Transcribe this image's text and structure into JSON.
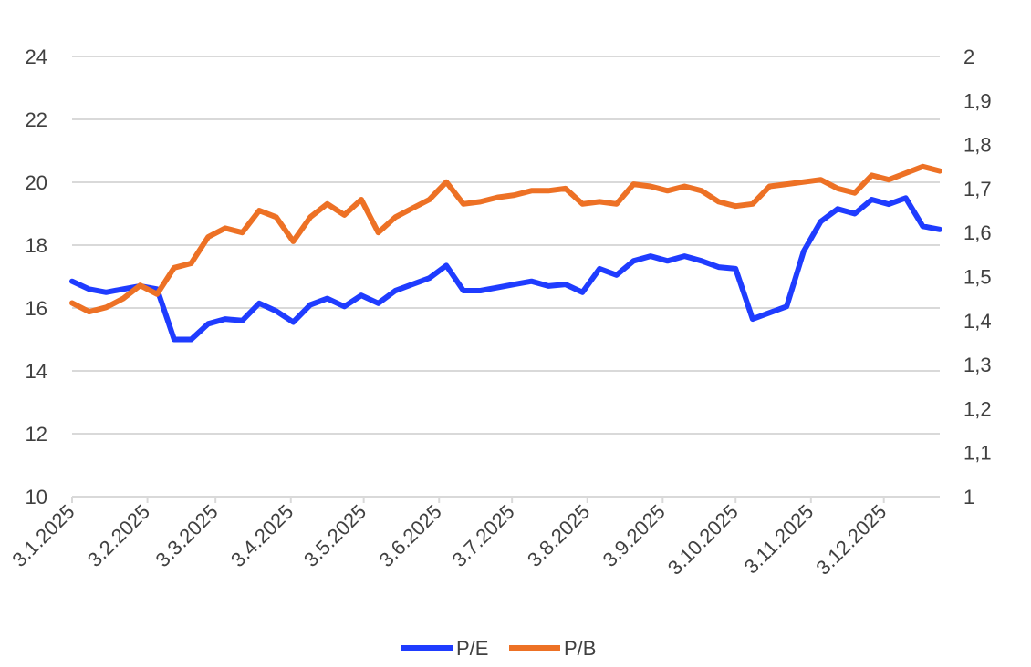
{
  "chart_data": {
    "type": "line",
    "x": [
      "2025-01-03",
      "2025-01-10",
      "2025-01-17",
      "2025-01-24",
      "2025-01-31",
      "2025-02-07",
      "2025-02-14",
      "2025-02-21",
      "2025-02-28",
      "2025-03-07",
      "2025-03-14",
      "2025-03-21",
      "2025-03-28",
      "2025-04-04",
      "2025-04-11",
      "2025-04-18",
      "2025-04-25",
      "2025-05-02",
      "2025-05-09",
      "2025-05-16",
      "2025-05-23",
      "2025-05-30",
      "2025-06-06",
      "2025-06-13",
      "2025-06-20",
      "2025-06-27",
      "2025-07-04",
      "2025-07-11",
      "2025-07-18",
      "2025-07-25",
      "2025-08-01",
      "2025-08-08",
      "2025-08-15",
      "2025-08-22",
      "2025-08-29",
      "2025-09-05",
      "2025-09-12",
      "2025-09-19",
      "2025-09-26",
      "2025-10-03",
      "2025-10-10",
      "2025-10-17",
      "2025-10-24",
      "2025-10-31",
      "2025-11-07",
      "2025-11-14",
      "2025-11-21",
      "2025-11-28",
      "2025-12-05",
      "2025-12-12",
      "2025-12-19",
      "2025-12-26"
    ],
    "x_tick_labels": [
      "3.1.2025",
      "3.2.2025",
      "3.3.2025",
      "3.4.2025",
      "3.5.2025",
      "3.6.2025",
      "3.7.2025",
      "3.8.2025",
      "3.9.2025",
      "3.10.2025",
      "3.11.2025",
      "3.12.2025"
    ],
    "x_tick_dates": [
      "2025-01-03",
      "2025-02-03",
      "2025-03-03",
      "2025-04-03",
      "2025-05-03",
      "2025-06-03",
      "2025-07-03",
      "2025-08-03",
      "2025-09-03",
      "2025-10-03",
      "2025-11-03",
      "2025-12-03"
    ],
    "x_range": [
      "2025-01-03",
      "2025-12-26"
    ],
    "series": [
      {
        "name": "P/E",
        "axis": "left",
        "color": "#1f3cff",
        "values": [
          16.85,
          16.6,
          16.5,
          16.6,
          16.7,
          16.6,
          15.0,
          15.0,
          15.5,
          15.65,
          15.6,
          16.15,
          15.9,
          15.55,
          16.1,
          16.3,
          16.05,
          16.4,
          16.15,
          16.55,
          16.75,
          16.95,
          17.35,
          16.55,
          16.55,
          16.65,
          16.75,
          16.85,
          16.7,
          16.75,
          16.5,
          17.25,
          17.05,
          17.5,
          17.65,
          17.5,
          17.65,
          17.5,
          17.3,
          17.25,
          15.65,
          15.85,
          16.05,
          17.8,
          18.75,
          19.15,
          19.0,
          19.45,
          19.3,
          19.5,
          18.6,
          18.5
        ]
      },
      {
        "name": "P/B",
        "axis": "right",
        "color": "#ed7125",
        "values": [
          1.44,
          1.42,
          1.43,
          1.45,
          1.48,
          1.46,
          1.52,
          1.53,
          1.59,
          1.61,
          1.6,
          1.65,
          1.635,
          1.58,
          1.635,
          1.665,
          1.64,
          1.675,
          1.6,
          1.635,
          1.655,
          1.675,
          1.715,
          1.665,
          1.67,
          1.68,
          1.685,
          1.695,
          1.695,
          1.7,
          1.665,
          1.67,
          1.665,
          1.71,
          1.705,
          1.695,
          1.705,
          1.695,
          1.67,
          1.66,
          1.665,
          1.705,
          1.71,
          1.715,
          1.72,
          1.7,
          1.69,
          1.73,
          1.72,
          1.735,
          1.75,
          1.74
        ]
      }
    ],
    "y_left": {
      "ylim": [
        10,
        24
      ],
      "ticks": [
        "10",
        "12",
        "14",
        "16",
        "18",
        "20",
        "22",
        "24"
      ]
    },
    "y_right": {
      "ylim": [
        1,
        2
      ],
      "ticks": [
        "1",
        "1,1",
        "1,2",
        "1,3",
        "1,4",
        "1,5",
        "1,6",
        "1,7",
        "1,8",
        "1,9",
        "2"
      ]
    },
    "grid": true,
    "legend": {
      "position": "bottom",
      "entries": [
        "P/E",
        "P/B"
      ]
    },
    "title": "",
    "xlabel": "",
    "ylabel": ""
  }
}
